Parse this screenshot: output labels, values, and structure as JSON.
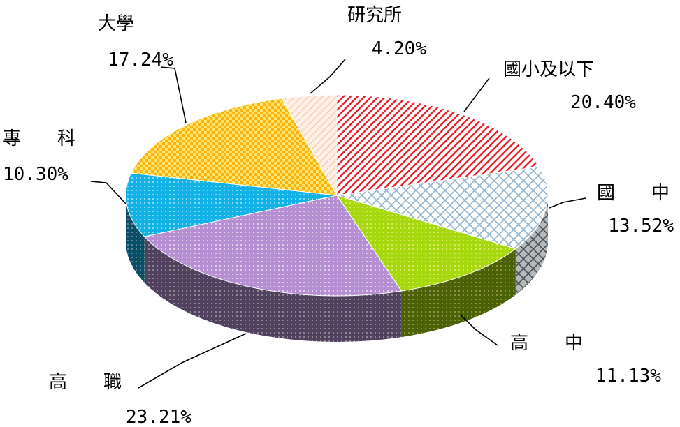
{
  "chart_data": {
    "type": "pie",
    "title": "",
    "labels": [
      "國小及以下",
      "國　　中",
      "高　　中",
      "高　　職",
      "專　　科",
      "大學",
      "研究所"
    ],
    "values": [
      20.4,
      13.52,
      11.13,
      23.21,
      10.3,
      17.24,
      4.2
    ],
    "value_labels": [
      "20.40%",
      "13.52%",
      "11.13%",
      "23.21%",
      "10.30%",
      "17.24%",
      "4.20%"
    ],
    "colors": [
      "#e8212b",
      "#8fb3cf",
      "#a6d80f",
      "#b58fd1",
      "#12b2e6",
      "#fbb313",
      "#f6cdb6"
    ],
    "legend": "none"
  }
}
